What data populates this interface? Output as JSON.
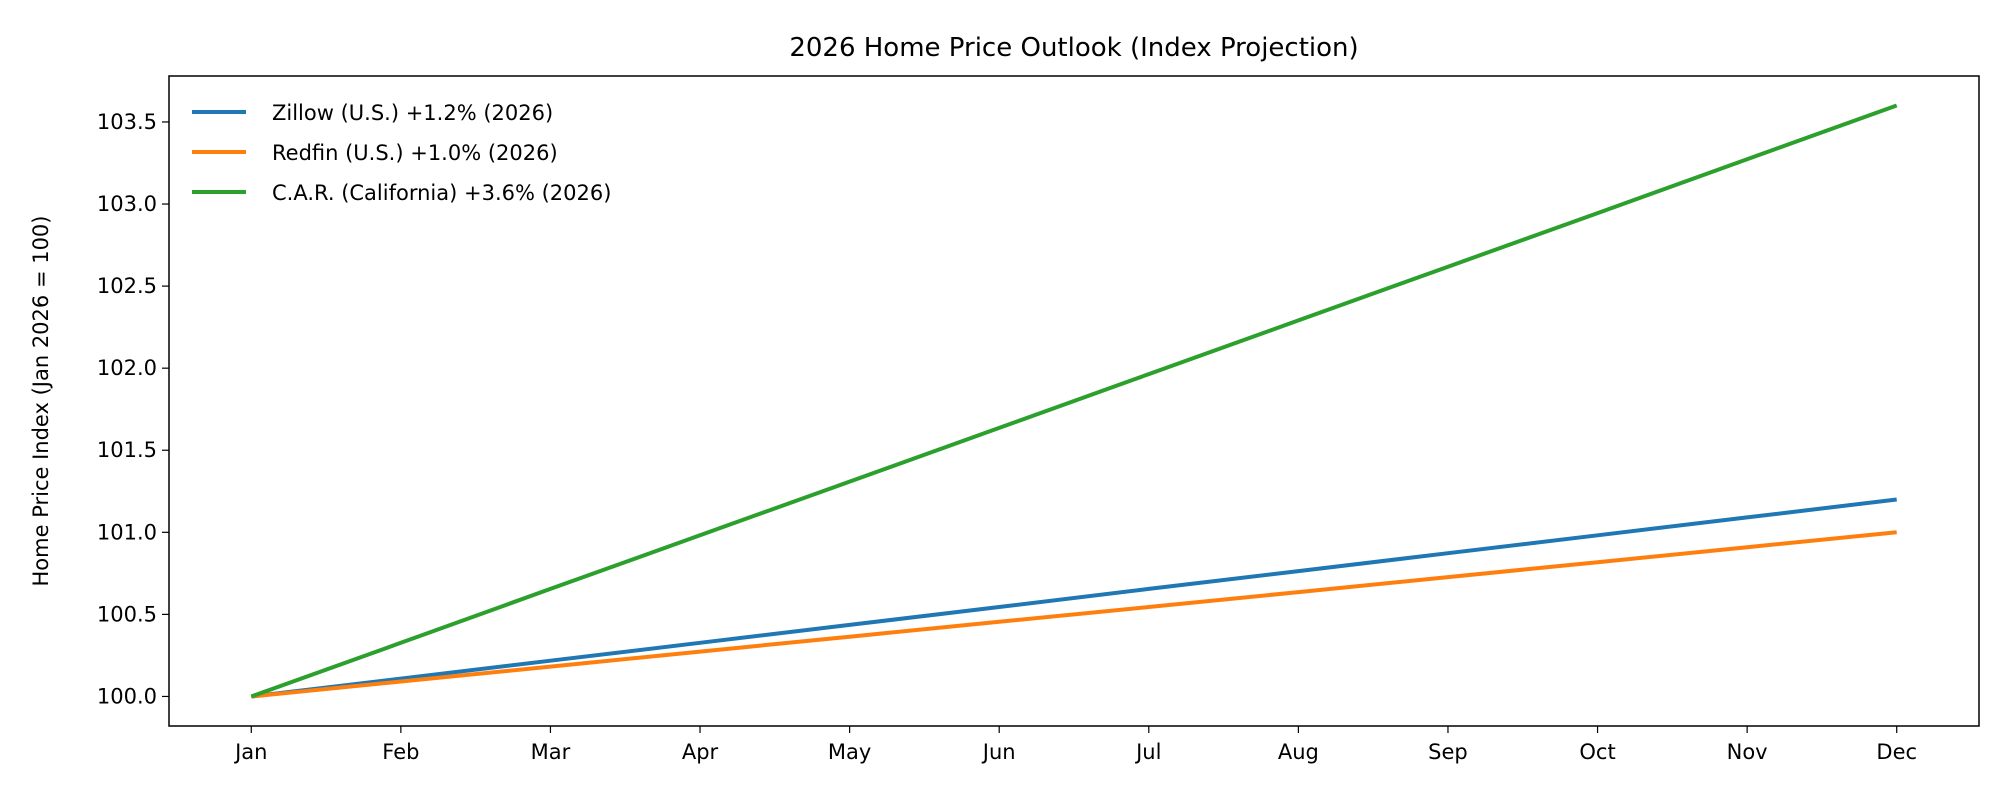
{
  "chart_data": {
    "type": "line",
    "title": "2026 Home Price Outlook (Index Projection)",
    "xlabel": "",
    "ylabel": "Home Price Index (Jan 2026 = 100)",
    "categories": [
      "Jan",
      "Feb",
      "Mar",
      "Apr",
      "May",
      "Jun",
      "Jul",
      "Aug",
      "Sep",
      "Oct",
      "Nov",
      "Dec"
    ],
    "ylim": [
      99.82,
      103.78
    ],
    "yticks": [
      "100.0",
      "100.5",
      "101.0",
      "101.5",
      "102.0",
      "102.5",
      "103.0",
      "103.5"
    ],
    "grid": false,
    "legend_placement": "top-left",
    "series": [
      {
        "name": "Zillow (U.S.) +1.2% (2026)",
        "color": "#1f77b4",
        "values": [
          100,
          100.109,
          100.218,
          100.327,
          100.436,
          100.545,
          100.655,
          100.764,
          100.873,
          100.982,
          101.091,
          101.2
        ]
      },
      {
        "name": "Redfin (U.S.) +1.0% (2026)",
        "color": "#ff7f0e",
        "values": [
          100,
          100.091,
          100.182,
          100.273,
          100.364,
          100.455,
          100.545,
          100.636,
          100.727,
          100.818,
          100.909,
          101.0
        ]
      },
      {
        "name": "C.A.R. (California) +3.6% (2026)",
        "color": "#2ca02c",
        "values": [
          100,
          100.327,
          100.655,
          100.982,
          101.309,
          101.636,
          101.964,
          102.291,
          102.618,
          102.945,
          103.273,
          103.6
        ]
      }
    ]
  }
}
